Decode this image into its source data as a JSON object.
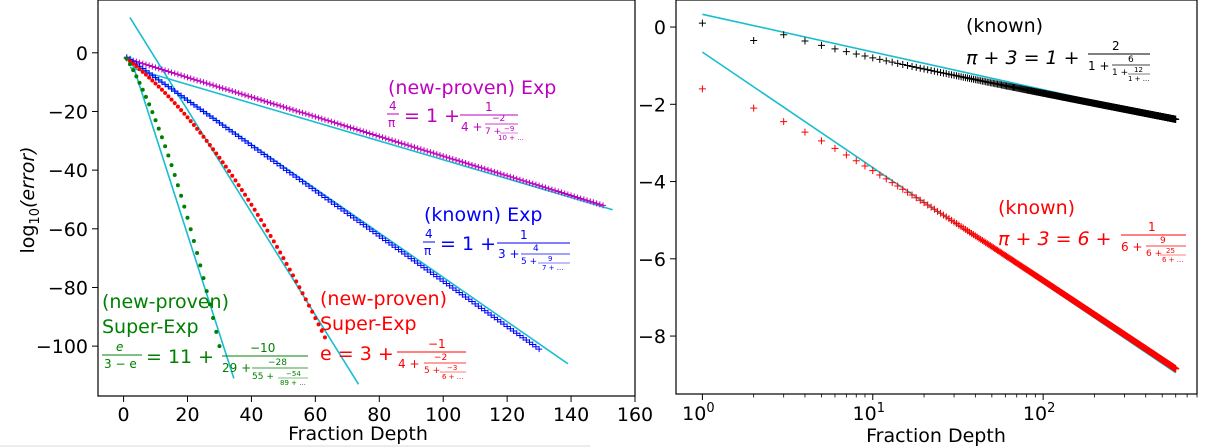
{
  "chart_data": [
    {
      "type": "scatter",
      "xlabel": "Fraction Depth",
      "ylabel_base": "log",
      "ylabel_sub": "10",
      "ylabel_arg": "(error)",
      "xlim": [
        -8,
        160
      ],
      "ylim": [
        -117,
        18
      ],
      "xticks": [
        0,
        20,
        40,
        60,
        80,
        100,
        120,
        140,
        160
      ],
      "yticks": [
        0,
        -20,
        -40,
        -60,
        -80,
        -100
      ],
      "colors": {
        "magenta": "#bf00bf",
        "blue": "#0000ff",
        "red": "#ff0000",
        "green": "#008000",
        "fit": "#17becf"
      },
      "series": [
        {
          "color_key": "magenta",
          "marker": "plus",
          "x_start": 1,
          "x_end": 150,
          "y_start": -2,
          "y_end": -52
        },
        {
          "color_key": "blue",
          "marker": "plus",
          "x_start": 1,
          "x_end": 130,
          "y_start": -1.5,
          "y_end": -101
        },
        {
          "color_key": "red",
          "marker": "dot",
          "x_start": 1,
          "x_end": 63,
          "y_start": -2,
          "y_end": -97,
          "power": 1.25
        },
        {
          "color_key": "green",
          "marker": "dot",
          "x_start": 1,
          "x_end": 30,
          "y_start": -2,
          "y_end": -100,
          "power": 1.3
        }
      ],
      "fit_lines": [
        [
          [
            2,
            -5
          ],
          [
            153,
            -53.5
          ]
        ],
        [
          [
            2,
            -2.5
          ],
          [
            139,
            -106
          ]
        ],
        [
          [
            2,
            12
          ],
          [
            73.5,
            -113
          ]
        ],
        [
          [
            2,
            -1
          ],
          [
            34.5,
            -111
          ]
        ]
      ],
      "annotations": {
        "magenta": {
          "title": "(new-proven) Exp",
          "lhs_num": "4",
          "lhs_den": "π",
          "eq": "= 1 +",
          "a0": "1",
          "b1": "4 +",
          "a1": "−2",
          "b2": "7 +",
          "a2": "−9",
          "b3": "10 + ..."
        },
        "blue": {
          "title": "(known) Exp",
          "lhs_num": "4",
          "lhs_den": "π",
          "eq": "= 1 +",
          "a0": "1",
          "b1": "3 +",
          "a1": "4",
          "b2": "5 +",
          "a2": "9",
          "b3": "7 + ..."
        },
        "red": {
          "title1": "(new-proven)",
          "title2": "Super-Exp",
          "lhs": "e = 3 +",
          "a0": "−1",
          "b1": "4 +",
          "a1": "−2",
          "b2": "5 +",
          "a2": "−3",
          "b3": "6 + ..."
        },
        "green": {
          "title1": "(new-proven)",
          "title2": "Super-Exp",
          "lhs_num": "e",
          "lhs_den": "3 − e",
          "eq": "= 11 +",
          "a0": "−10",
          "b1": "29 +",
          "a1": "−28",
          "b2": "55 +",
          "a2": "−54",
          "b3": "89 + ..."
        }
      }
    },
    {
      "type": "scatter",
      "xlabel": "Fraction Depth",
      "xscale": "log",
      "xlim": [
        0.7,
        800
      ],
      "ylim": [
        -9.5,
        0.7
      ],
      "xticks": [
        1,
        10,
        100
      ],
      "xtick_base": "10",
      "xtick_exps": [
        "0",
        "1",
        "2"
      ],
      "yticks": [
        0,
        -2,
        -4,
        -6,
        -8
      ],
      "colors": {
        "black": "#000000",
        "red": "#ff0000",
        "fit": "#17becf"
      },
      "series": [
        {
          "color_key": "black",
          "marker": "plus",
          "x_start": 1,
          "x_end": 600,
          "y_first": 0.1,
          "y_at_x": [
            [
              1,
              0.1
            ],
            [
              2,
              -0.35
            ],
            [
              3,
              -0.2
            ],
            [
              10,
              -0.75
            ],
            [
              600,
              -2.4
            ]
          ],
          "intercept": 0.0,
          "slope": -0.86
        },
        {
          "color_key": "red",
          "marker": "plus",
          "x_start": 1,
          "x_end": 600,
          "y_at_x": [
            [
              1,
              -1.6
            ],
            [
              2,
              -2.1
            ],
            [
              3,
              -2.45
            ],
            [
              10,
              -3.65
            ],
            [
              600,
              -8.95
            ]
          ],
          "intercept": -0.65,
          "slope": -2.95
        }
      ],
      "fit_lines": [
        [
          [
            1,
            0.33
          ],
          [
            600,
            -2.38
          ]
        ],
        [
          [
            1,
            -0.65
          ],
          [
            600,
            -8.95
          ]
        ]
      ],
      "annotations": {
        "black": {
          "title": "(known)",
          "lhs": "π + 3 = 1 +",
          "a0": "2",
          "b1": "1 +",
          "a1": "6",
          "b2": "1 +",
          "a2": "12",
          "b3": "1 + ..."
        },
        "red": {
          "title": "(known)",
          "lhs": "π + 3 = 6 +",
          "a0": "1",
          "b1": "6 +",
          "a1": "9",
          "b2": "6 +",
          "a2": "25",
          "b3": "6 + ..."
        }
      }
    }
  ]
}
